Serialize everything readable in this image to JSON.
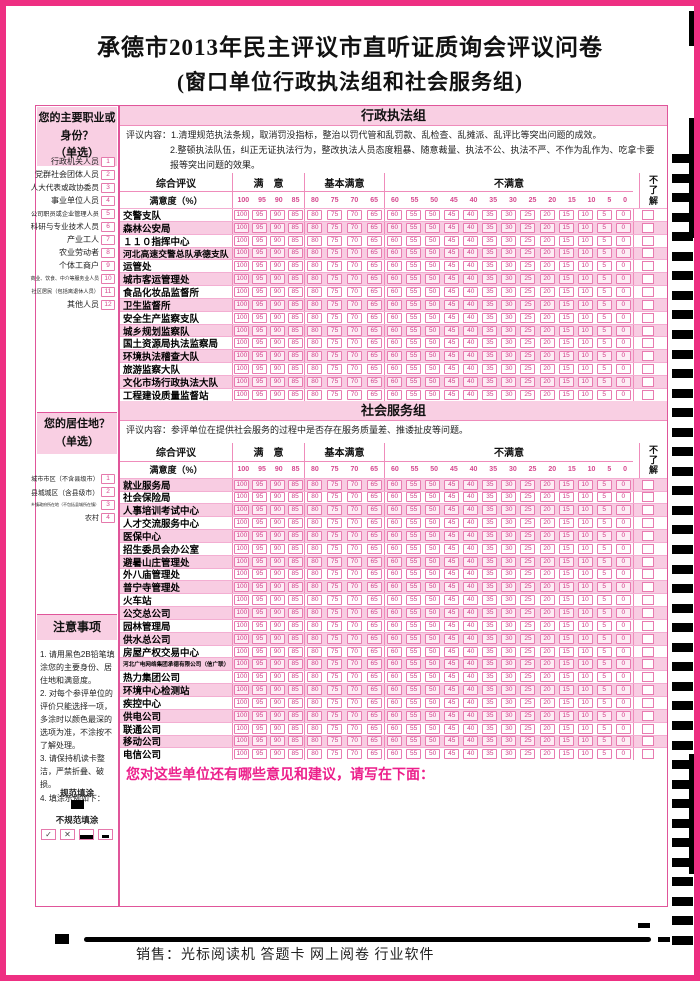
{
  "page": {
    "title": "承德市2013年民主评议市直听证质询会评议问卷",
    "subtitle": "(窗口单位行政执法组和社会服务组)",
    "footer": "销售：光标阅读机 答题卡 网上阅卷 行业软件",
    "suggestion_prompt": "您对这些单位还有哪些意见和建议，请写在下面："
  },
  "colors": {
    "border_pink": "#ee2f82",
    "header_bg": "#f9cfe3",
    "stripe_pink": "#f8cce2",
    "value_pink": "#cf3d87",
    "suggestion_pink": "#ec1f8b",
    "mark_black": "#000000"
  },
  "sidebar": {
    "occupation": {
      "title": "您的主要职业或身份？",
      "subtitle": "（单选）",
      "options": [
        {
          "label": "行政机关人员",
          "num": "1"
        },
        {
          "label": "党群社会团体人员",
          "num": "2"
        },
        {
          "label": "人大代表或政协委员",
          "num": "3"
        },
        {
          "label": "事业单位人员",
          "num": "4"
        },
        {
          "label": "公司职员或企业管理人员",
          "num": "5"
        },
        {
          "label": "科研与专业技术人员",
          "num": "6"
        },
        {
          "label": "产业工人",
          "num": "7"
        },
        {
          "label": "农业劳动者",
          "num": "8"
        },
        {
          "label": "个体工商户",
          "num": "9"
        },
        {
          "label": "商业、饮食、中介等服务业人员",
          "num": "10"
        },
        {
          "label": "社区居民（包括离退休人员）",
          "num": "11"
        },
        {
          "label": "其他人员",
          "num": "12"
        }
      ]
    },
    "residence": {
      "title": "您的居住地？",
      "subtitle": "（单选）",
      "options": [
        {
          "label": "城市市区（不含县级市）",
          "num": "1"
        },
        {
          "label": "县城城区（含县级市）",
          "num": "2"
        },
        {
          "label": "乡镇政府所在地（不包括县城所在镇）",
          "num": "3"
        },
        {
          "label": "农村",
          "num": "4"
        }
      ]
    },
    "notes": {
      "title": "注意事项",
      "items": [
        "1. 请用黑色2B铅笔填涂您的主要身份、居住地和满意度。",
        "2. 对每个参评单位的评价只能选择一项，多涂时以颜色最深的选项为准，不涂按不了解处理。",
        "3. 请保持机读卡整洁，严禁折叠、破损。",
        "4. 填涂示例如下："
      ],
      "good_label": "规范填涂",
      "bad_label": "不规范填涂"
    }
  },
  "table": {
    "header": {
      "col_overall": "综合评议",
      "col_satisfied": "满　意",
      "col_basic": "基本满意",
      "col_unsatisfied": "不满意",
      "col_unknown": "不了解",
      "row_label": "满意度（%）",
      "satisfied_values": [
        "100",
        "95",
        "90",
        "85"
      ],
      "basic_values": [
        "80",
        "75",
        "70",
        "65"
      ],
      "unsatisfied_values": [
        "60",
        "55",
        "50",
        "45",
        "40",
        "35",
        "30",
        "25",
        "20",
        "15",
        "10",
        "5",
        "0"
      ]
    },
    "sections": [
      {
        "name": "行政执法组",
        "content_lines": [
          "评议内容：1.清理规范执法条规，取消罚没指标，整治以罚代管和乱罚款、乱检查、乱摊派、乱评比等突出问题的成效。",
          "2.整顿执法队伍，纠正无证执法行为，整改执法人员态度粗暴、随意裁量、执法不公、执法不严、不作为乱作为、吃拿卡要报等突出问题的效果。"
        ],
        "stripe_start": "white",
        "agencies": [
          "交警支队",
          "森林公安局",
          "１１０指挥中心",
          "河北高速交警总队承德支队",
          "运管处",
          "城市客运管理处",
          "食品化妆品监督所",
          "卫生监督所",
          "安全生产监察支队",
          "城乡规划监察队",
          "国土资源局执法监察局",
          "环境执法稽查大队",
          "旅游监察大队",
          "文化市场行政执法大队",
          "工程建设质量监督站"
        ]
      },
      {
        "name": "社会服务组",
        "content_lines": [
          "评议内容：参评单位在提供社会服务的过程中是否存在服务质量差、推诿扯皮等问题。"
        ],
        "stripe_start": "pink",
        "agencies": [
          "就业服务局",
          "社会保险局",
          "人事培训考试中心",
          "人才交流服务中心",
          "医保中心",
          "招生委员会办公室",
          "避暑山庄管理处",
          "外八庙管理处",
          "普宁寺管理处",
          "火车站",
          "公交总公司",
          "园林管理局",
          "供水总公司",
          "房屋产权交易中心",
          "河北广电网络集团承德有限公司（信广联）",
          "热力集团公司",
          "环境中心检测站",
          "疾控中心",
          "供电公司",
          "联通公司",
          "移动公司",
          "电信公司"
        ]
      }
    ]
  },
  "omr": {
    "right_mark_count": 41
  }
}
